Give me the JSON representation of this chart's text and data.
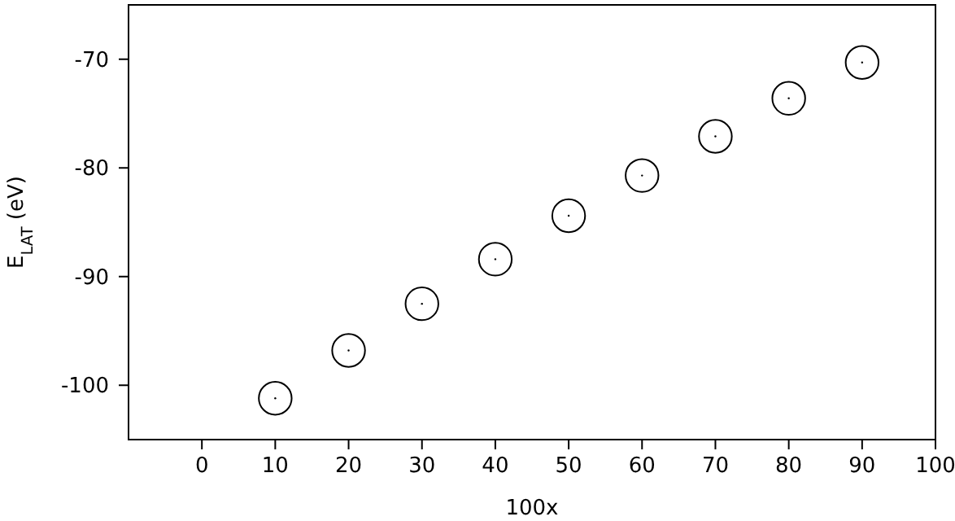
{
  "chart_data": {
    "type": "scatter",
    "xlabel": "100x",
    "ylabel": "E$_{LAT}$ (eV)",
    "x": [
      10,
      20,
      30,
      40,
      50,
      60,
      70,
      80,
      90
    ],
    "values": [
      -101.2,
      -96.8,
      -92.5,
      -88.4,
      -84.4,
      -80.7,
      -77.1,
      -73.6,
      -70.3
    ],
    "color": "#000000",
    "marker": "circle",
    "xlim": [
      -10,
      100
    ],
    "xticks": [
      0,
      10,
      20,
      30,
      40,
      50,
      60,
      70,
      80,
      90,
      100
    ],
    "ylim": [
      -105,
      -65
    ],
    "yticks": [
      -100,
      -90,
      -80,
      -70
    ],
    "grid": false
  }
}
